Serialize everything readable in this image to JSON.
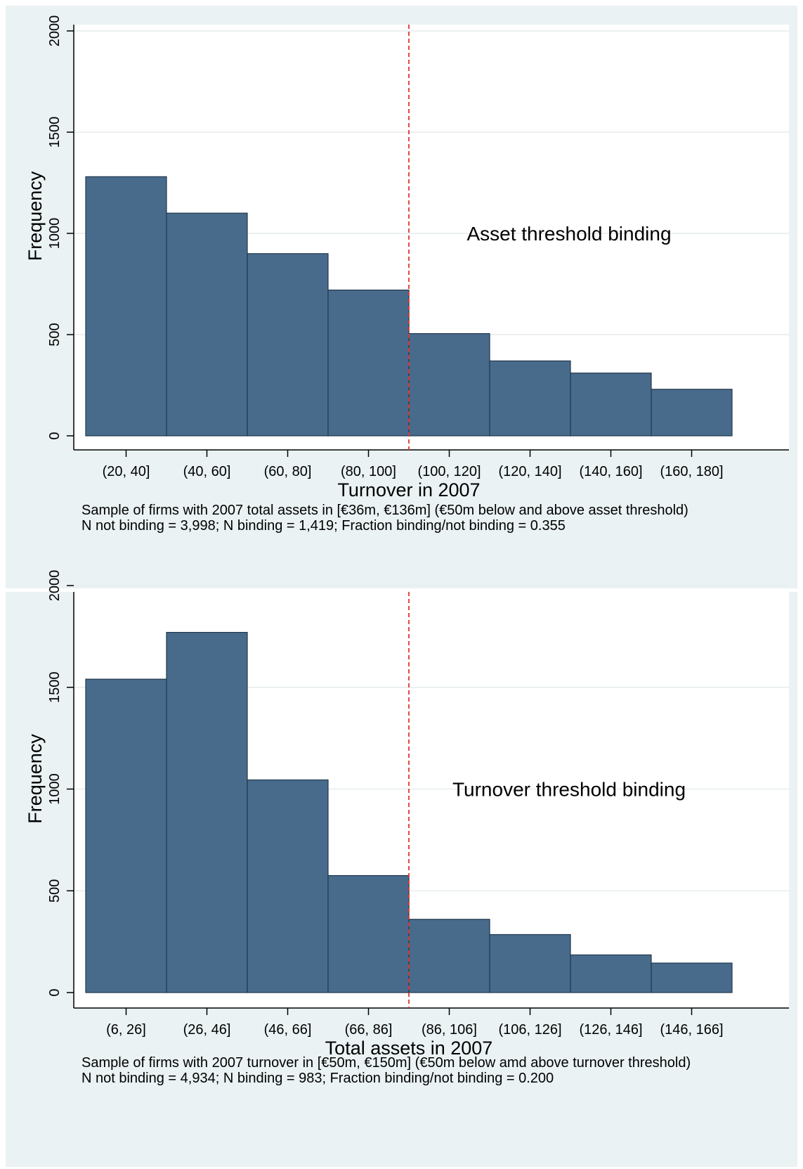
{
  "chart_data": [
    {
      "type": "bar",
      "categories": [
        "(20, 40]",
        "(40, 60]",
        "(60, 80]",
        "(80, 100]",
        "(100, 120]",
        "(120, 140]",
        "(140, 160]",
        "(160, 180]"
      ],
      "values": [
        1280,
        1100,
        900,
        720,
        505,
        370,
        310,
        230
      ],
      "xlabel": "Turnover in 2007",
      "ylabel": "Frequency",
      "ylim": [
        0,
        2000
      ],
      "yticks": [
        "0",
        "500",
        "1000",
        "1500",
        "2000"
      ],
      "ytick_values": [
        0,
        500,
        1000,
        1500,
        2000
      ],
      "threshold_after_bin": 4,
      "annotation": "Asset threshold binding",
      "notes": [
        "Sample of firms with 2007 total assets in [€36m, €136m] (€50m below and above asset threshold)",
        "N not binding = 3,998; N binding = 1,419; Fraction binding/not binding = 0.355"
      ],
      "grid": true,
      "bar_color": "#486b8c",
      "threshold_color": "#e8322f",
      "plot_background": "#ffffff",
      "panel_background": "#eaf2f3"
    },
    {
      "type": "bar",
      "categories": [
        "(6, 26]",
        "(26, 46]",
        "(46, 66]",
        "(66, 86]",
        "(86, 106]",
        "(106, 126]",
        "(126, 146]",
        "(146, 166]"
      ],
      "values": [
        1540,
        1770,
        1045,
        575,
        360,
        285,
        185,
        145
      ],
      "xlabel": "Total assets in 2007",
      "ylabel": "Frequency",
      "ylim": [
        0,
        2000
      ],
      "yticks": [
        "0",
        "500",
        "1000",
        "1500",
        "2000"
      ],
      "ytick_values": [
        0,
        500,
        1000,
        1500,
        2000
      ],
      "threshold_after_bin": 4,
      "annotation": "Turnover threshold binding",
      "notes": [
        "Sample of firms with 2007 turnover in [€50m, €150m] (€50m below amd above turnover threshold)",
        "N not binding = 4,934; N binding = 983; Fraction binding/not binding = 0.200"
      ],
      "grid": true,
      "bar_color": "#486b8c",
      "threshold_color": "#e8322f",
      "plot_background": "#ffffff",
      "panel_background": "#eaf2f3"
    }
  ]
}
